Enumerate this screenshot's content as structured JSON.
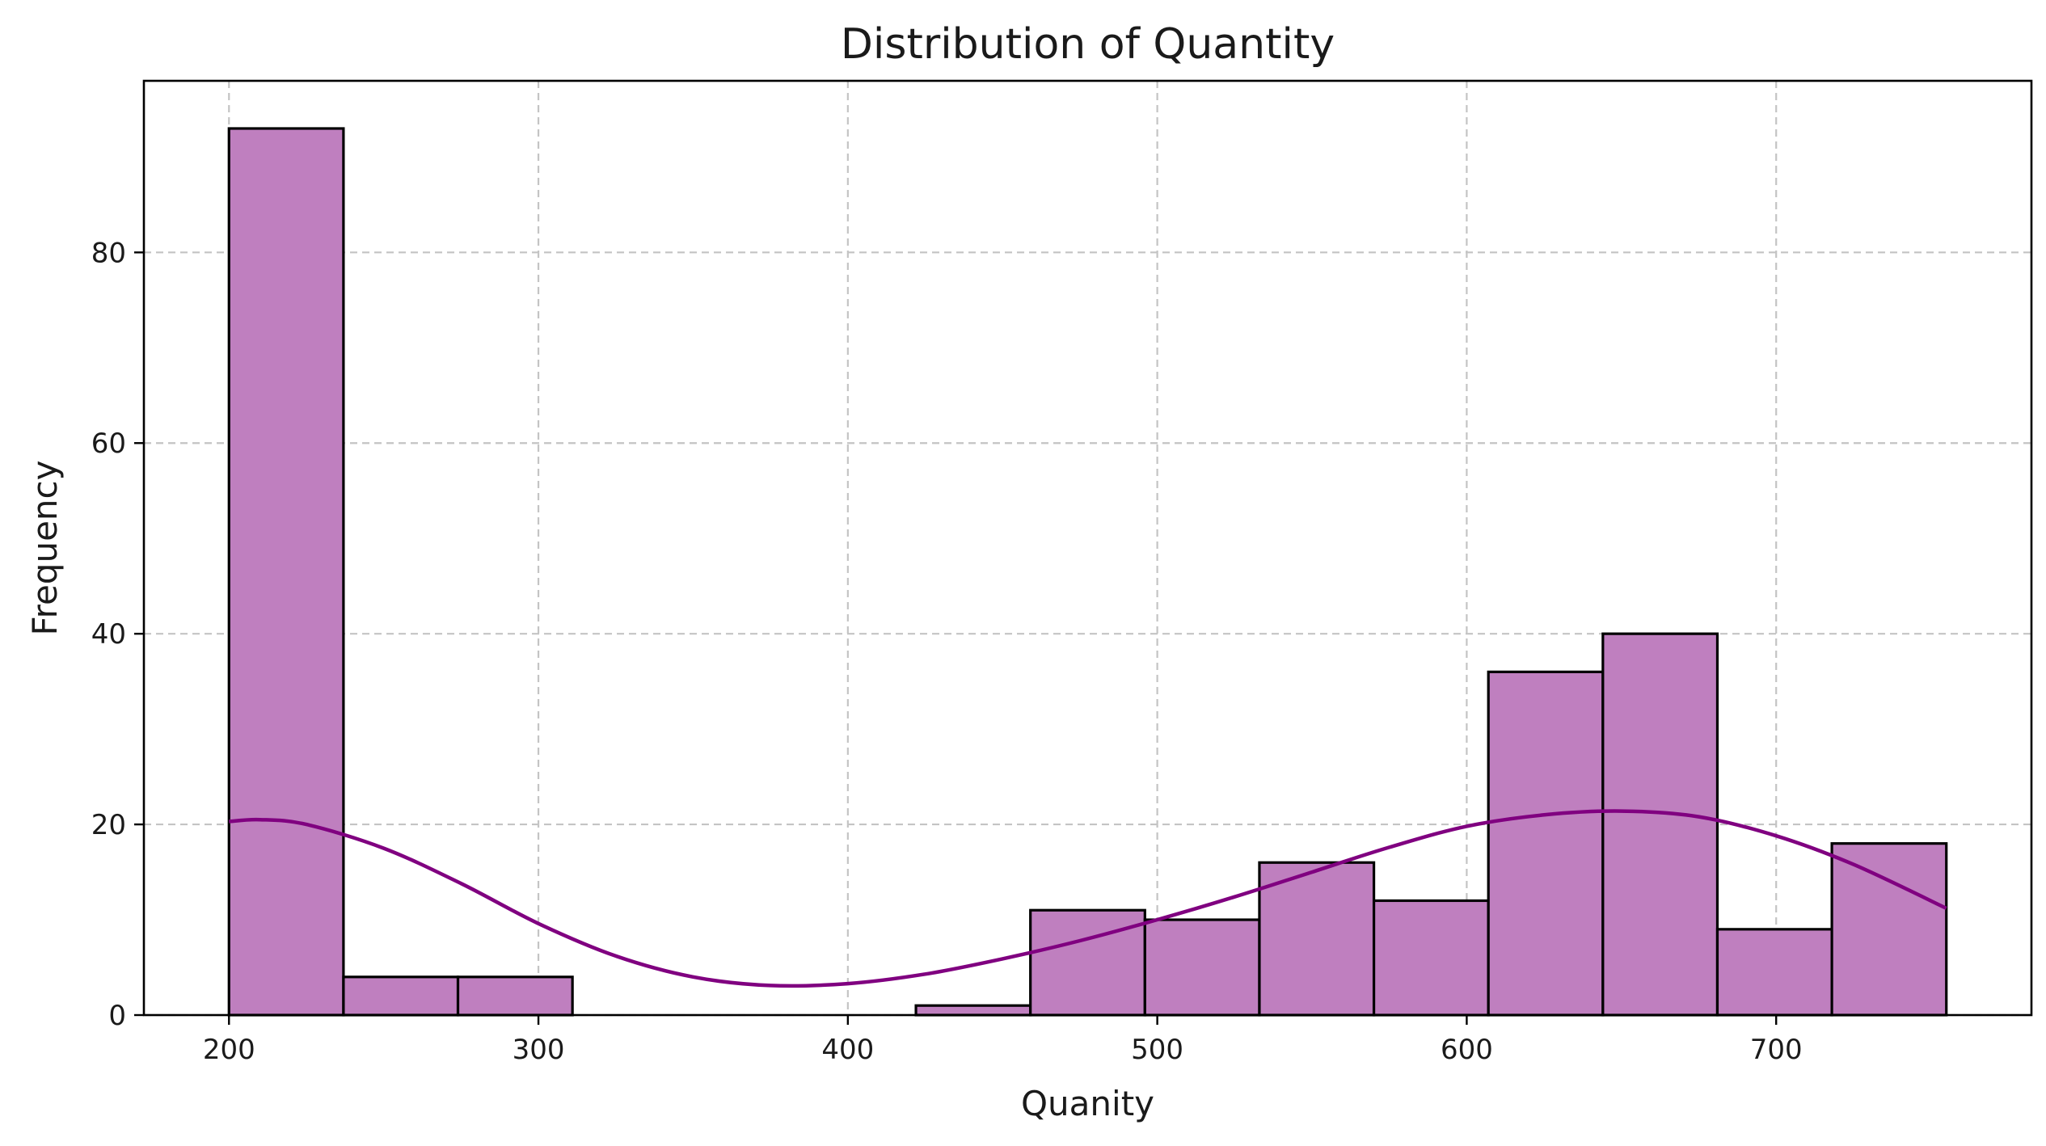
{
  "chart_data": {
    "type": "bar",
    "title": "Distribution of Quantity",
    "xlabel": "Quanity",
    "ylabel": "Frequency",
    "xlim": [
      172.5,
      782.5
    ],
    "ylim": [
      0,
      98
    ],
    "x_ticks": [
      200,
      300,
      400,
      500,
      600,
      700
    ],
    "y_ticks": [
      0,
      20,
      40,
      60,
      80
    ],
    "grid": true,
    "bin_edges": [
      200,
      237,
      274,
      311,
      348,
      385,
      422,
      459,
      496,
      533,
      570,
      607,
      644,
      681,
      718,
      755
    ],
    "values": [
      93,
      4,
      4,
      0,
      0,
      0,
      1,
      11,
      10,
      16,
      12,
      36,
      40,
      9,
      18
    ],
    "kde": {
      "x": [
        200,
        210,
        225,
        250,
        275,
        300,
        325,
        350,
        375,
        400,
        425,
        450,
        475,
        500,
        525,
        550,
        575,
        600,
        625,
        650,
        675,
        700,
        725,
        755
      ],
      "y": [
        20.3,
        20.5,
        20.0,
        17.5,
        13.8,
        9.6,
        6.2,
        4.0,
        3.1,
        3.3,
        4.3,
        5.9,
        7.8,
        10.0,
        12.4,
        15.0,
        17.6,
        19.8,
        21.0,
        21.4,
        20.8,
        18.8,
        15.8,
        11.2
      ]
    },
    "colors": {
      "bar_fill": "#bf7fbf",
      "bar_edge": "#000000",
      "kde_line": "#800080"
    }
  }
}
